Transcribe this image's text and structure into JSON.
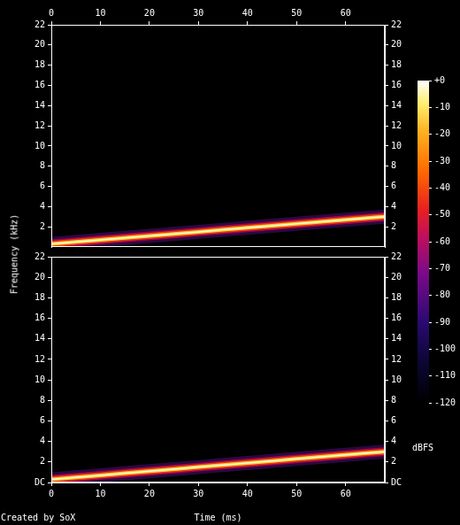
{
  "chart_data": [
    {
      "type": "line",
      "ylabel": "Frequency (kHz)",
      "x": [
        0,
        5,
        10,
        15,
        20,
        25,
        30,
        35,
        40,
        45,
        50,
        55,
        60,
        65,
        68
      ],
      "values": [
        0.3,
        0.5,
        0.7,
        0.9,
        1.1,
        1.3,
        1.5,
        1.7,
        1.9,
        2.1,
        2.3,
        2.5,
        2.7,
        2.9,
        3.0
      ],
      "color": "#ffcc33",
      "grid": false,
      "xlim": [
        0,
        68
      ],
      "xticks": [
        0,
        10,
        20,
        30,
        40,
        50,
        60
      ],
      "ylim": [
        0,
        22
      ],
      "yticks": [
        2,
        4,
        6,
        8,
        10,
        12,
        14,
        16,
        18,
        20,
        22
      ]
    },
    {
      "type": "line",
      "xlabel": "Time (ms)",
      "x": [
        0,
        5,
        10,
        15,
        20,
        25,
        30,
        35,
        40,
        45,
        50,
        55,
        60,
        65,
        68
      ],
      "values": [
        0.3,
        0.5,
        0.7,
        0.9,
        1.1,
        1.3,
        1.5,
        1.7,
        1.9,
        2.1,
        2.3,
        2.5,
        2.7,
        2.9,
        3.0
      ],
      "color": "#ffcc33",
      "grid": false,
      "xlim": [
        0,
        68
      ],
      "xticks": [
        0,
        10,
        20,
        30,
        40,
        50,
        60
      ],
      "ylim": [
        0,
        22
      ],
      "yticks": [
        {
          "value": 0,
          "label": "DC"
        },
        2,
        4,
        6,
        8,
        10,
        12,
        14,
        16,
        18,
        20,
        22
      ]
    }
  ],
  "colorbar": {
    "label": "dBFS",
    "range": [
      -120,
      0
    ],
    "ticks": [
      {
        "value": 0,
        "label": "+0"
      },
      -10,
      -20,
      -30,
      -40,
      -50,
      -60,
      -70,
      -80,
      -90,
      -100,
      -110,
      -120
    ]
  },
  "footer": "Created by SoX"
}
